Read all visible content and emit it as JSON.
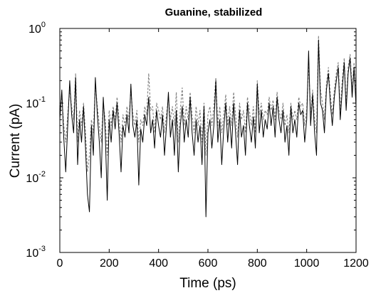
{
  "chart_data": {
    "type": "line",
    "title": "Guanine, stabilized",
    "xlabel": "Time (ps)",
    "ylabel": "Current (pA)",
    "xlim": [
      0,
      1200
    ],
    "ylim": [
      0.001,
      1
    ],
    "yscale": "log",
    "grid": false,
    "x_ticks": [
      {
        "value": 0,
        "label": "0"
      },
      {
        "value": 200,
        "label": "200"
      },
      {
        "value": 400,
        "label": "400"
      },
      {
        "value": 600,
        "label": "600"
      },
      {
        "value": 800,
        "label": "800"
      },
      {
        "value": 1000,
        "label": "1000"
      },
      {
        "value": 1200,
        "label": "1200"
      }
    ],
    "y_ticks": [
      {
        "value": 0.001,
        "base": "10",
        "exp": "-3"
      },
      {
        "value": 0.01,
        "base": "10",
        "exp": "-2"
      },
      {
        "value": 0.1,
        "base": "10",
        "exp": "-1"
      },
      {
        "value": 1,
        "base": "10",
        "exp": "0"
      }
    ],
    "series": [
      {
        "style": "solid",
        "color": "#000000",
        "x": [
          0,
          8,
          16,
          24,
          32,
          40,
          48,
          56,
          64,
          72,
          80,
          88,
          96,
          104,
          112,
          120,
          128,
          136,
          144,
          152,
          160,
          168,
          176,
          184,
          192,
          200,
          208,
          216,
          224,
          232,
          240,
          248,
          256,
          264,
          272,
          280,
          288,
          296,
          304,
          312,
          320,
          328,
          336,
          344,
          352,
          360,
          368,
          376,
          384,
          392,
          400,
          408,
          416,
          424,
          432,
          440,
          448,
          456,
          464,
          472,
          480,
          488,
          496,
          504,
          512,
          520,
          528,
          536,
          544,
          552,
          560,
          568,
          576,
          584,
          592,
          600,
          608,
          616,
          624,
          632,
          640,
          648,
          656,
          664,
          672,
          680,
          688,
          696,
          704,
          712,
          720,
          728,
          736,
          744,
          752,
          760,
          768,
          776,
          784,
          792,
          800,
          808,
          816,
          824,
          832,
          840,
          848,
          856,
          864,
          872,
          880,
          888,
          896,
          904,
          912,
          920,
          928,
          936,
          944,
          952,
          960,
          968,
          976,
          984,
          992,
          1000,
          1008,
          1016,
          1024,
          1032,
          1040,
          1048,
          1056,
          1064,
          1072,
          1080,
          1088,
          1096,
          1104,
          1112,
          1120,
          1128,
          1136,
          1144,
          1152,
          1160,
          1168,
          1176,
          1184,
          1192,
          1200
        ],
        "y": [
          0.06,
          0.15,
          0.035,
          0.012,
          0.05,
          0.2,
          0.07,
          0.04,
          0.22,
          0.015,
          0.06,
          0.03,
          0.09,
          0.025,
          0.006,
          0.0035,
          0.05,
          0.02,
          0.22,
          0.07,
          0.03,
          0.01,
          0.12,
          0.04,
          0.005,
          0.06,
          0.03,
          0.08,
          0.045,
          0.1,
          0.04,
          0.012,
          0.05,
          0.035,
          0.07,
          0.04,
          0.18,
          0.05,
          0.035,
          0.06,
          0.008,
          0.045,
          0.03,
          0.07,
          0.05,
          0.12,
          0.04,
          0.06,
          0.025,
          0.08,
          0.05,
          0.035,
          0.07,
          0.02,
          0.05,
          0.14,
          0.035,
          0.06,
          0.02,
          0.08,
          0.012,
          0.05,
          0.09,
          0.03,
          0.06,
          0.035,
          0.12,
          0.04,
          0.02,
          0.06,
          0.03,
          0.05,
          0.015,
          0.09,
          0.003,
          0.04,
          0.06,
          0.025,
          0.05,
          0.2,
          0.03,
          0.06,
          0.015,
          0.045,
          0.1,
          0.03,
          0.065,
          0.025,
          0.1,
          0.04,
          0.015,
          0.08,
          0.035,
          0.05,
          0.02,
          0.1,
          0.05,
          0.03,
          0.065,
          0.025,
          0.18,
          0.04,
          0.08,
          0.035,
          0.06,
          0.045,
          0.1,
          0.05,
          0.09,
          0.035,
          0.12,
          0.06,
          0.04,
          0.08,
          0.03,
          0.05,
          0.02,
          0.09,
          0.04,
          0.06,
          0.035,
          0.1,
          0.07,
          0.08,
          0.03,
          0.06,
          0.5,
          0.05,
          0.13,
          0.04,
          0.02,
          0.7,
          0.1,
          0.08,
          0.04,
          0.15,
          0.25,
          0.1,
          0.05,
          0.12,
          0.2,
          0.3,
          0.06,
          0.15,
          0.35,
          0.08,
          0.25,
          0.4,
          0.12,
          0.3,
          0.09
        ]
      },
      {
        "style": "dashed",
        "color": "#808080",
        "x": [
          0,
          8,
          16,
          24,
          32,
          40,
          48,
          56,
          64,
          72,
          80,
          88,
          96,
          104,
          112,
          120,
          128,
          136,
          144,
          152,
          160,
          168,
          176,
          184,
          192,
          200,
          208,
          216,
          224,
          232,
          240,
          248,
          256,
          264,
          272,
          280,
          288,
          296,
          304,
          312,
          320,
          328,
          336,
          344,
          352,
          360,
          368,
          376,
          384,
          392,
          400,
          408,
          416,
          424,
          432,
          440,
          448,
          456,
          464,
          472,
          480,
          488,
          496,
          504,
          512,
          520,
          528,
          536,
          544,
          552,
          560,
          568,
          576,
          584,
          592,
          600,
          608,
          616,
          624,
          632,
          640,
          648,
          656,
          664,
          672,
          680,
          688,
          696,
          704,
          712,
          720,
          728,
          736,
          744,
          752,
          760,
          768,
          776,
          784,
          792,
          800,
          808,
          816,
          824,
          832,
          840,
          848,
          856,
          864,
          872,
          880,
          888,
          896,
          904,
          912,
          920,
          928,
          936,
          944,
          952,
          960,
          968,
          976,
          984,
          992,
          1000,
          1008,
          1016,
          1024,
          1032,
          1040,
          1048,
          1056,
          1064,
          1072,
          1080,
          1088,
          1096,
          1104,
          1112,
          1120,
          1128,
          1136,
          1144,
          1152,
          1160,
          1168,
          1176,
          1184,
          1192,
          1200
        ],
        "y": [
          0.08,
          0.12,
          0.05,
          0.03,
          0.07,
          0.15,
          0.09,
          0.06,
          0.25,
          0.03,
          0.08,
          0.05,
          0.1,
          0.04,
          0.012,
          0.02,
          0.06,
          0.04,
          0.18,
          0.09,
          0.05,
          0.03,
          0.1,
          0.06,
          0.02,
          0.08,
          0.05,
          0.09,
          0.06,
          0.12,
          0.06,
          0.03,
          0.07,
          0.05,
          0.09,
          0.06,
          0.15,
          0.07,
          0.05,
          0.08,
          0.03,
          0.06,
          0.05,
          0.09,
          0.07,
          0.25,
          0.08,
          0.09,
          0.04,
          0.1,
          0.08,
          0.06,
          0.09,
          0.04,
          0.07,
          0.12,
          0.06,
          0.09,
          0.05,
          0.14,
          0.03,
          0.08,
          0.16,
          0.05,
          0.09,
          0.06,
          0.14,
          0.07,
          0.04,
          0.09,
          0.05,
          0.08,
          0.03,
          0.1,
          0.02,
          0.07,
          0.09,
          0.05,
          0.09,
          0.22,
          0.05,
          0.09,
          0.04,
          0.07,
          0.13,
          0.05,
          0.09,
          0.05,
          0.14,
          0.07,
          0.035,
          0.1,
          0.06,
          0.08,
          0.04,
          0.12,
          0.08,
          0.05,
          0.09,
          0.04,
          0.2,
          0.07,
          0.1,
          0.06,
          0.08,
          0.07,
          0.12,
          0.08,
          0.11,
          0.06,
          0.14,
          0.08,
          0.06,
          0.1,
          0.05,
          0.07,
          0.04,
          0.1,
          0.06,
          0.08,
          0.06,
          0.12,
          0.09,
          0.1,
          0.05,
          0.08,
          0.35,
          0.07,
          0.15,
          0.06,
          0.04,
          0.8,
          0.15,
          0.1,
          0.06,
          0.18,
          0.3,
          0.13,
          0.07,
          0.15,
          0.25,
          0.35,
          0.08,
          0.2,
          0.4,
          0.1,
          0.3,
          0.45,
          0.15,
          0.35,
          0.12
        ]
      }
    ]
  }
}
